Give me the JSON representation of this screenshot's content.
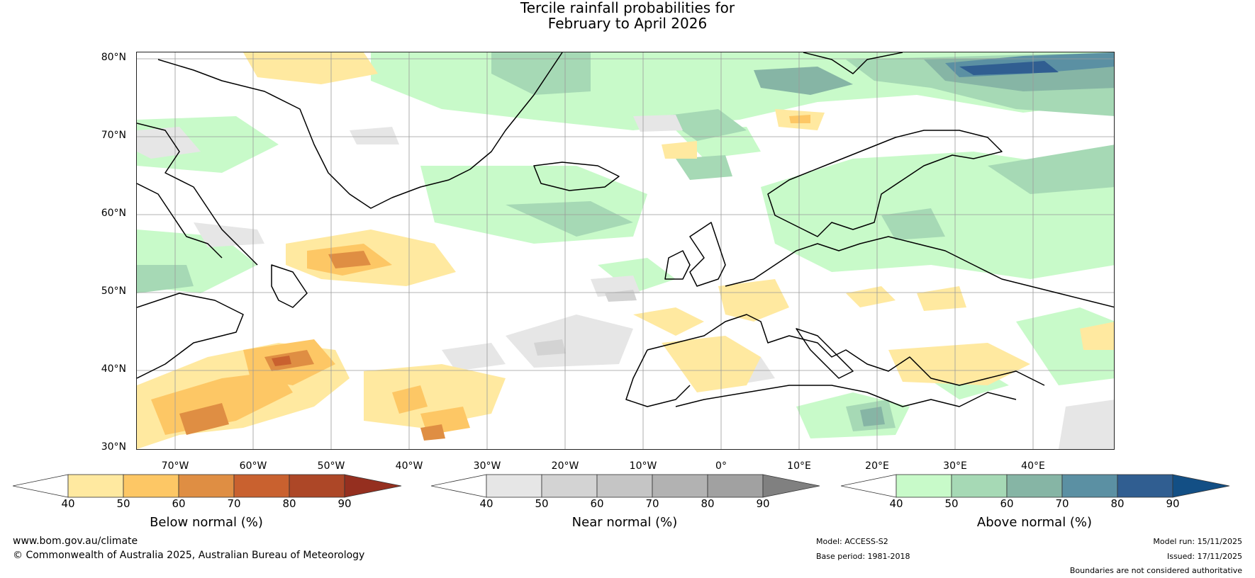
{
  "title": {
    "line1": "Tercile rainfall probabilities for",
    "line2": "February to April 2026"
  },
  "map": {
    "lat_labels": [
      "80°N",
      "70°N",
      "60°N",
      "50°N",
      "40°N",
      "30°N"
    ],
    "lon_labels": [
      "70°W",
      "60°W",
      "50°W",
      "40°W",
      "30°W",
      "20°W",
      "10°W",
      "0°",
      "10°E",
      "20°E",
      "30°E",
      "40°E"
    ]
  },
  "colorbars": [
    {
      "title": "Below normal (%)",
      "ticks": [
        "40",
        "50",
        "60",
        "70",
        "80",
        "90"
      ],
      "colors": [
        "#ffffff",
        "#ffe9a0",
        "#fdc765",
        "#df8e43",
        "#c9612f",
        "#ad4727",
        "#952f1f"
      ]
    },
    {
      "title": "Near normal (%)",
      "ticks": [
        "40",
        "50",
        "60",
        "70",
        "80",
        "90"
      ],
      "colors": [
        "#ffffff",
        "#e6e6e6",
        "#d3d3d3",
        "#c5c5c5",
        "#b2b2b2",
        "#a1a1a1",
        "#808080"
      ]
    },
    {
      "title": "Above normal (%)",
      "ticks": [
        "40",
        "50",
        "60",
        "70",
        "80",
        "90"
      ],
      "colors": [
        "#ffffff",
        "#c8fac9",
        "#a6d9b5",
        "#86b5a5",
        "#5b90a3",
        "#305e91",
        "#134f85"
      ]
    }
  ],
  "footer": {
    "url": "www.bom.gov.au/climate",
    "copyright": "© Commonwealth of Australia 2025, Australian Bureau of Meteorology",
    "model": "Model: ACCESS-S2",
    "base_period": "Base period: 1981-2018",
    "model_run": "Model run: 15/11/2025",
    "issued": "Issued: 17/11/2025",
    "boundaries": "Boundaries are not considered authoritative"
  }
}
